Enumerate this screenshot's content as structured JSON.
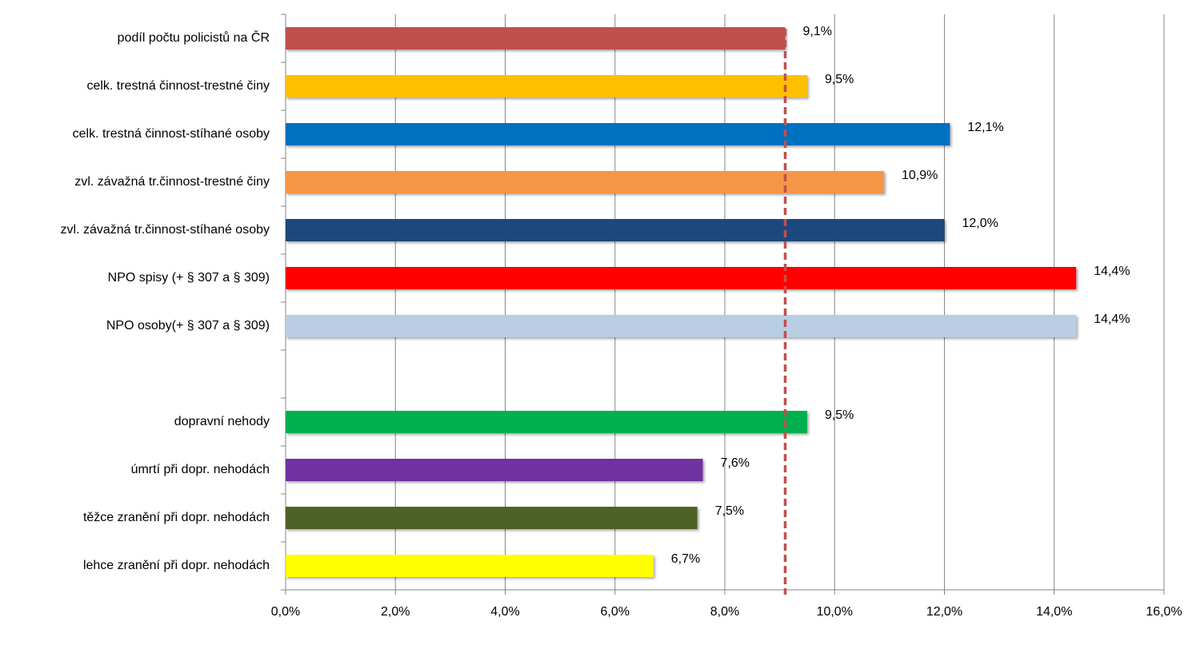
{
  "chart_data": {
    "type": "bar",
    "orientation": "horizontal",
    "categories": [
      "podíl počtu policistů na ČR",
      "celk. trestná činnost-trestné činy",
      "celk. trestná činnost-stíhané osoby",
      "zvl. závažná tr.činnost-trestné činy",
      "zvl. závažná tr.činnost-stíhané osoby",
      "NPO spisy (+ § 307 a § 309)",
      "NPO osoby(+ § 307 a § 309)",
      null,
      "dopravní nehody",
      "úmrtí při dopr. nehodách",
      "těžce zranění při dopr. nehodách",
      "lehce zranění při dopr. nehodách"
    ],
    "values": [
      9.1,
      9.5,
      12.1,
      10.9,
      12.0,
      14.4,
      14.4,
      null,
      9.5,
      7.6,
      7.5,
      6.7
    ],
    "value_labels": [
      "9,1%",
      "9,5%",
      "12,1%",
      "10,9%",
      "12,0%",
      "14,4%",
      "14,4%",
      null,
      "9,5%",
      "7,6%",
      "7,5%",
      "6,7%"
    ],
    "colors": [
      "#c0504d",
      "#ffc000",
      "#0070c0",
      "#f79646",
      "#1f497d",
      "#ff0000",
      "#b9cde5",
      null,
      "#00b050",
      "#7030a0",
      "#4f6228",
      "#ffff00"
    ],
    "xlim": [
      0,
      16
    ],
    "xticks": [
      {
        "value": 0,
        "label": "0,0%"
      },
      {
        "value": 2,
        "label": "2,0%"
      },
      {
        "value": 4,
        "label": "4,0%"
      },
      {
        "value": 6,
        "label": "6,0%"
      },
      {
        "value": 8,
        "label": "8,0%"
      },
      {
        "value": 10,
        "label": "10,0%"
      },
      {
        "value": 12,
        "label": "12,0%"
      },
      {
        "value": 14,
        "label": "14,0%"
      },
      {
        "value": 16,
        "label": "16,0%"
      }
    ],
    "grid": true,
    "reference_line": {
      "value": 9.1,
      "color": "#c0504d"
    }
  }
}
